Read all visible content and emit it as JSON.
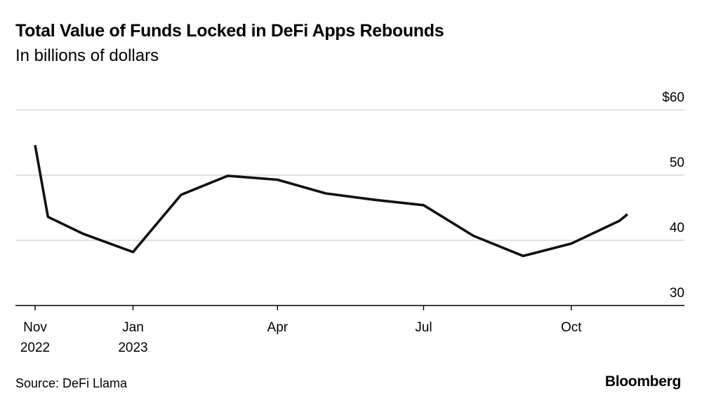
{
  "header": {
    "title": "Total Value of Funds Locked in DeFi Apps Rebounds",
    "subtitle": "In billions of dollars"
  },
  "footer": {
    "source": "Source: DeFi Llama",
    "brand": "Bloomberg"
  },
  "chart_data": {
    "type": "line",
    "title": "Total Value of Funds Locked in DeFi Apps Rebounds",
    "subtitle": "In billions of dollars",
    "xlabel": "",
    "ylabel": "",
    "grid": true,
    "ylim": [
      30,
      60
    ],
    "y_ticks": [
      {
        "value": 60,
        "label": "$60"
      },
      {
        "value": 50,
        "label": "50"
      },
      {
        "value": 40,
        "label": "40"
      },
      {
        "value": 30,
        "label": "30"
      }
    ],
    "x_ticks": [
      {
        "date": "2022-11-01",
        "line1": "Nov",
        "line2": "2022"
      },
      {
        "date": "2023-01-01",
        "line1": "Jan",
        "line2": "2023"
      },
      {
        "date": "2023-04-01",
        "line1": "Apr",
        "line2": ""
      },
      {
        "date": "2023-07-01",
        "line1": "Jul",
        "line2": ""
      },
      {
        "date": "2023-10-01",
        "line1": "Oct",
        "line2": ""
      }
    ],
    "xlim": [
      "2022-11-01",
      "2023-11-30"
    ],
    "series": [
      {
        "name": "",
        "color": "#111111",
        "points": [
          {
            "x": "2022-11-01",
            "y": 54.6
          },
          {
            "x": "2022-11-09",
            "y": 43.6
          },
          {
            "x": "2022-12-01",
            "y": 41.0
          },
          {
            "x": "2023-01-01",
            "y": 38.2
          },
          {
            "x": "2023-01-31",
            "y": 47.0
          },
          {
            "x": "2023-03-01",
            "y": 49.9
          },
          {
            "x": "2023-04-01",
            "y": 49.3
          },
          {
            "x": "2023-05-01",
            "y": 47.2
          },
          {
            "x": "2023-06-01",
            "y": 46.2
          },
          {
            "x": "2023-07-01",
            "y": 45.4
          },
          {
            "x": "2023-08-01",
            "y": 40.7
          },
          {
            "x": "2023-09-01",
            "y": 37.6
          },
          {
            "x": "2023-10-01",
            "y": 39.5
          },
          {
            "x": "2023-10-31",
            "y": 43.0
          },
          {
            "x": "2023-11-05",
            "y": 44.0
          }
        ]
      }
    ]
  }
}
